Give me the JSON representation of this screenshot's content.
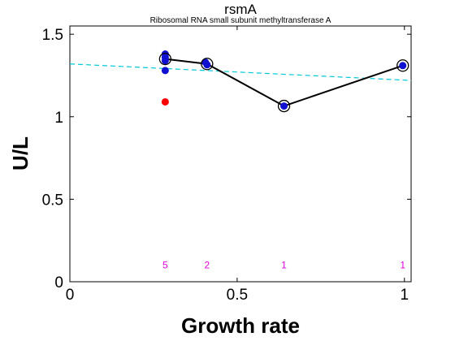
{
  "chart_data": {
    "type": "scatter",
    "title": "rsmA",
    "subtitle": "Ribosomal RNA small subunit methyltransferase A",
    "xlabel": "Growth rate",
    "ylabel": "U/L",
    "xlim": [
      0,
      1.02
    ],
    "ylim": [
      0,
      1.55
    ],
    "xticks": [
      0,
      0.5,
      1
    ],
    "xtick_labels": [
      "0",
      "0.5",
      "1"
    ],
    "yticks": [
      0,
      0.5,
      1,
      1.5
    ],
    "ytick_labels": [
      "0",
      "0.5",
      "1",
      "1.5"
    ],
    "grid": false,
    "colors": {
      "points": "#1010d0",
      "outlier": "#ff0000",
      "mean_line": "#000000",
      "fit_line": "#00c8d8",
      "counts": "#e000e0"
    },
    "points": [
      {
        "x": 0.285,
        "y": 1.38
      },
      {
        "x": 0.285,
        "y": 1.36
      },
      {
        "x": 0.285,
        "y": 1.34
      },
      {
        "x": 0.285,
        "y": 1.28
      },
      {
        "x": 0.405,
        "y": 1.33
      },
      {
        "x": 0.41,
        "y": 1.315
      },
      {
        "x": 0.64,
        "y": 1.065
      },
      {
        "x": 0.995,
        "y": 1.31
      }
    ],
    "outliers": [
      {
        "x": 0.285,
        "y": 1.09
      }
    ],
    "means": {
      "x": [
        0.285,
        0.41,
        0.64,
        0.995
      ],
      "y": [
        1.35,
        1.32,
        1.065,
        1.31
      ]
    },
    "fit": {
      "x": [
        0,
        1.02
      ],
      "y": [
        1.32,
        1.22
      ]
    },
    "counts": [
      {
        "x": 0.285,
        "label": "5"
      },
      {
        "x": 0.41,
        "label": "2"
      },
      {
        "x": 0.64,
        "label": "1"
      },
      {
        "x": 0.995,
        "label": "1"
      }
    ],
    "count_y": 0.1
  }
}
